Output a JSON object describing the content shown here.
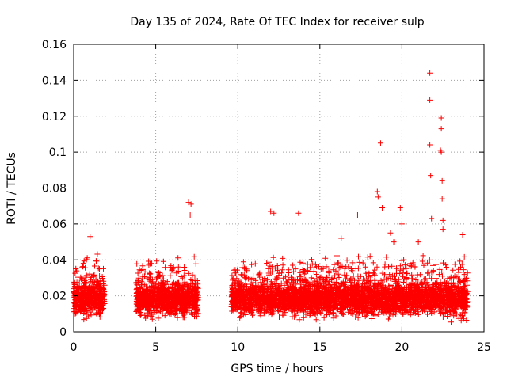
{
  "chart_data": {
    "type": "scatter",
    "title": "Day 135 of 2024, Rate Of TEC Index for receiver sulp",
    "xlabel": "GPS time / hours",
    "ylabel": "ROTI / TECUs",
    "xlim": [
      0,
      25
    ],
    "ylim": [
      0,
      0.16
    ],
    "xticks": [
      0,
      5,
      10,
      15,
      20,
      25
    ],
    "yticks": [
      0,
      0.02,
      0.04,
      0.06,
      0.08,
      0.1,
      0.12,
      0.14,
      0.16
    ],
    "xtick_labels": [
      "0",
      "5",
      "10",
      "15",
      "20",
      "25"
    ],
    "ytick_labels": [
      "0",
      "0.02",
      "0.04",
      "0.06",
      "0.08",
      "0.1",
      "0.12",
      "0.14",
      "0.16"
    ],
    "grid": true,
    "marker": "+",
    "color": "#ff0000",
    "series": [
      {
        "name": "ROTI",
        "segments": [
          [
            0.0,
            1.9
          ],
          [
            3.8,
            7.6
          ],
          [
            9.6,
            24.0
          ]
        ],
        "points": [
          [
            1.0,
            0.053
          ],
          [
            7.0,
            0.072
          ],
          [
            7.15,
            0.071
          ],
          [
            7.1,
            0.065
          ],
          [
            12.0,
            0.067
          ],
          [
            12.2,
            0.066
          ],
          [
            13.7,
            0.066
          ],
          [
            17.3,
            0.065
          ],
          [
            18.7,
            0.105
          ],
          [
            18.5,
            0.078
          ],
          [
            18.55,
            0.075
          ],
          [
            18.8,
            0.069
          ],
          [
            19.9,
            0.069
          ],
          [
            20.0,
            0.06
          ],
          [
            21.7,
            0.144
          ],
          [
            21.7,
            0.129
          ],
          [
            21.7,
            0.104
          ],
          [
            21.75,
            0.087
          ],
          [
            21.8,
            0.063
          ],
          [
            22.4,
            0.119
          ],
          [
            22.4,
            0.113
          ],
          [
            22.35,
            0.101
          ],
          [
            22.4,
            0.1
          ],
          [
            22.45,
            0.084
          ],
          [
            22.45,
            0.074
          ],
          [
            22.5,
            0.062
          ],
          [
            22.5,
            0.057
          ],
          [
            16.3,
            0.052
          ],
          [
            19.3,
            0.055
          ],
          [
            19.5,
            0.05
          ],
          [
            21.0,
            0.05
          ],
          [
            23.7,
            0.054
          ]
        ]
      }
    ]
  }
}
